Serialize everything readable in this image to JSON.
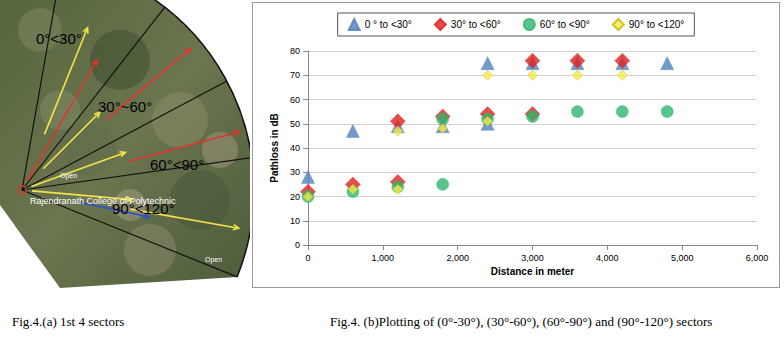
{
  "chart_data": {
    "type": "scatter",
    "x_label": "Distance in meter",
    "y_label": "Pathloss in dB",
    "xlim": [
      0,
      6000
    ],
    "xticks": [
      0,
      1000,
      2000,
      3000,
      4000,
      5000,
      6000
    ],
    "ylim": [
      0,
      80
    ],
    "yticks": [
      0,
      10,
      20,
      30,
      40,
      50,
      60,
      70,
      80
    ],
    "grid": true,
    "legend": "top",
    "series": [
      {
        "name": "0 ° to <30°",
        "color": "#4f81bd",
        "marker": "triangle",
        "x": [
          0,
          600,
          1200,
          1800,
          2400,
          2400,
          3000,
          3600,
          4200,
          4800
        ],
        "values": [
          28,
          47,
          49,
          49,
          50,
          75,
          75,
          75,
          75,
          75
        ]
      },
      {
        "name": "30° to <60°",
        "color": "#e0201c",
        "marker": "diamond",
        "x": [
          0,
          600,
          1200,
          1200,
          1800,
          2400,
          3000,
          3000,
          3600,
          4200
        ],
        "values": [
          22,
          25,
          26,
          51,
          53,
          54,
          54,
          76,
          76,
          76
        ]
      },
      {
        "name": "60° to <90°",
        "color": "#2fb56f",
        "marker": "circle",
        "x": [
          0,
          600,
          1200,
          1800,
          1800,
          2400,
          3000,
          3600,
          4200,
          4800
        ],
        "values": [
          20,
          22,
          24,
          25,
          52,
          52,
          53,
          55,
          55,
          55
        ]
      },
      {
        "name": "90° to <120°",
        "color": "#f5e94a",
        "marker": "diamond",
        "x": [
          0,
          600,
          1200,
          1200,
          1800,
          2400,
          2400,
          3000,
          3600,
          4200
        ],
        "values": [
          20,
          23,
          23,
          47,
          48,
          51,
          70,
          70,
          70,
          70
        ]
      }
    ]
  },
  "map": {
    "sectors": [
      "0°<30°",
      "30°~60°",
      "60°<90°",
      "90°<120°"
    ],
    "landmark": "Rajendranath College of Polytechnic",
    "annotations": [
      "Open",
      "Open"
    ]
  },
  "captions": {
    "a": "Fig.4.(a) 1st 4 sectors",
    "b": "Fig.4. (b)Plotting of (0°-30°), (30°-60°), (60°-90°) and (90°-120°) sectors"
  }
}
